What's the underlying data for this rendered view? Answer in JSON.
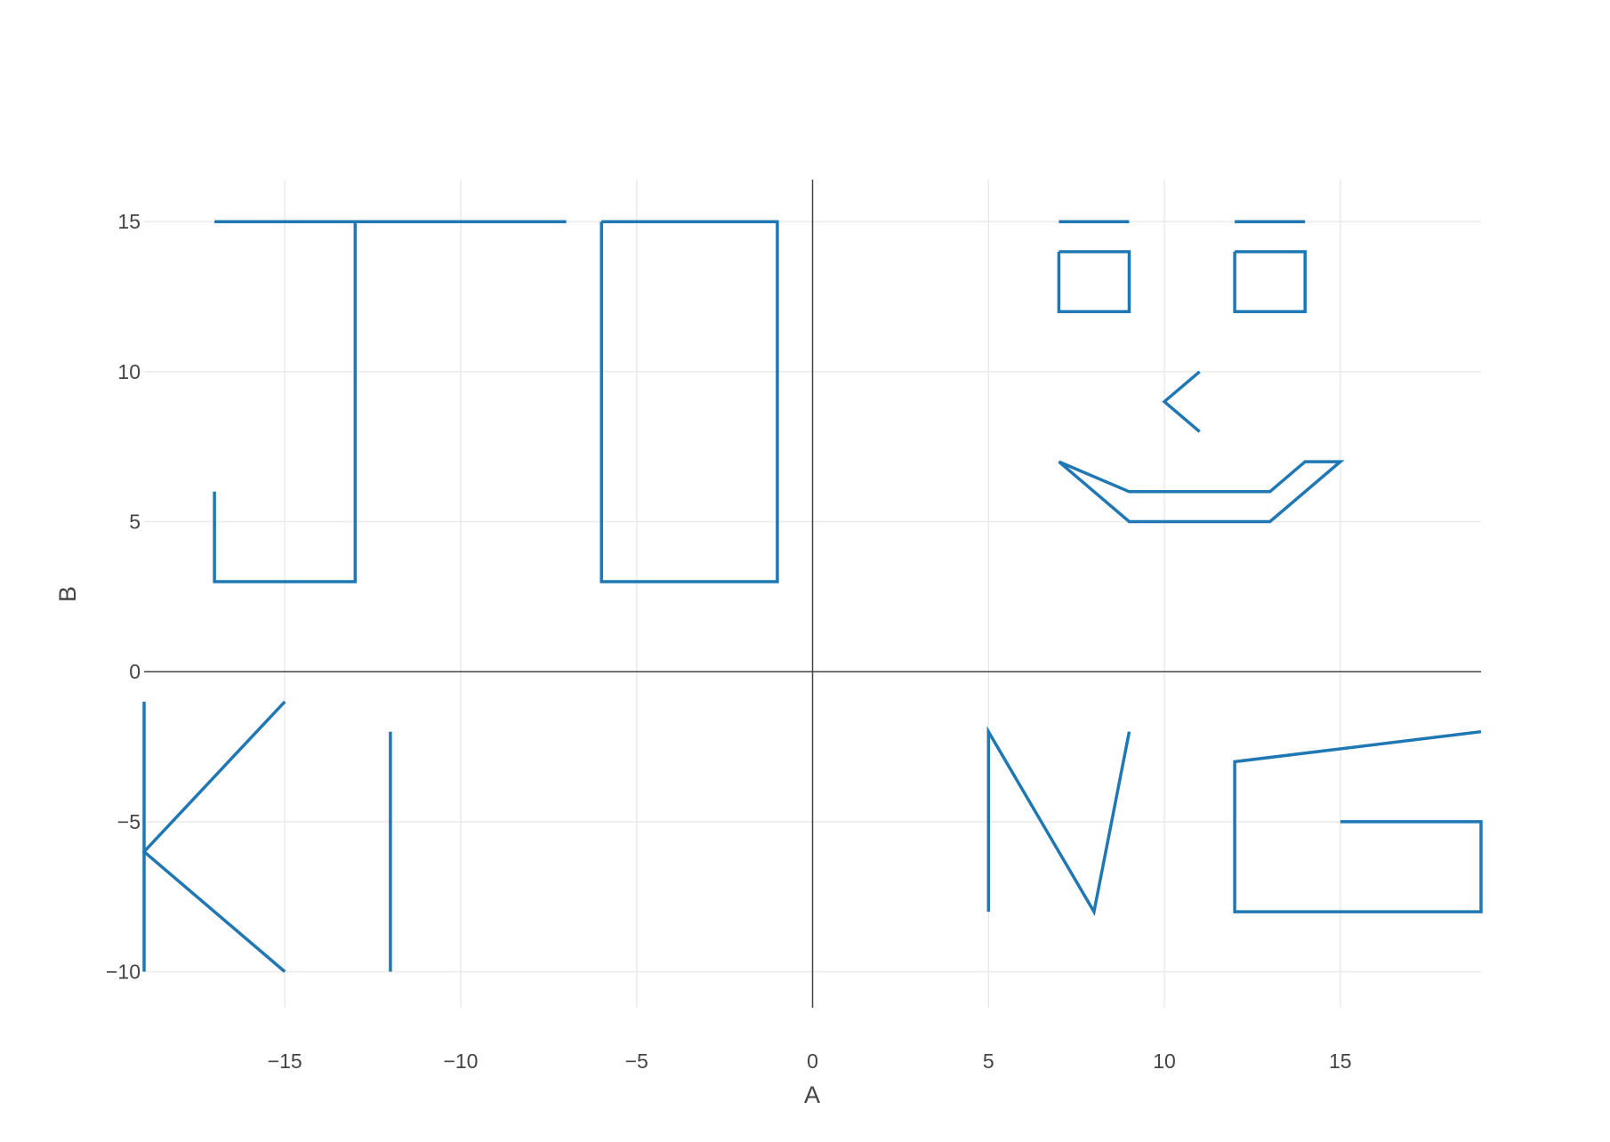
{
  "chart_data": {
    "type": "line",
    "title": "",
    "xlabel": "A",
    "ylabel": "B",
    "xlim": [
      -19,
      19
    ],
    "ylim": [
      -11.2,
      16.4
    ],
    "x_ticks": [
      -15,
      -10,
      -5,
      0,
      5,
      10,
      15
    ],
    "y_ticks": [
      -10,
      -5,
      0,
      5,
      10,
      15
    ],
    "x_tick_labels": [
      "−15",
      "−10",
      "−5",
      "0",
      "5",
      "10",
      "15"
    ],
    "y_tick_labels": [
      "−10",
      "−5",
      "0",
      "5",
      "10",
      "15"
    ],
    "grid": true,
    "zero_lines": true,
    "line_color": "#1f77b4",
    "series": [
      {
        "x": [
          -17,
          -17,
          -13,
          -13
        ],
        "y": [
          6,
          3,
          3,
          15
        ]
      },
      {
        "x": [
          -17,
          -7
        ],
        "y": [
          15,
          15
        ]
      },
      {
        "x": [
          -6,
          -1,
          -1,
          -6,
          -6
        ],
        "y": [
          15,
          15,
          3,
          3,
          15
        ]
      },
      {
        "x": [
          7,
          9
        ],
        "y": [
          15,
          15
        ]
      },
      {
        "x": [
          12,
          14
        ],
        "y": [
          15,
          15
        ]
      },
      {
        "x": [
          7,
          9,
          9,
          7,
          7
        ],
        "y": [
          14,
          14,
          12,
          12,
          14
        ]
      },
      {
        "x": [
          12,
          14,
          14,
          12,
          12
        ],
        "y": [
          14,
          14,
          12,
          12,
          14
        ]
      },
      {
        "x": [
          11,
          10,
          11
        ],
        "y": [
          10,
          9,
          8
        ]
      },
      {
        "x": [
          7,
          9,
          13,
          14,
          15,
          13,
          9,
          7
        ],
        "y": [
          7,
          6,
          6,
          7,
          7,
          5,
          5,
          7
        ]
      },
      {
        "x": [
          -19,
          -19
        ],
        "y": [
          -1,
          -10
        ]
      },
      {
        "x": [
          -15,
          -19,
          -15
        ],
        "y": [
          -1,
          -6,
          -10
        ]
      },
      {
        "x": [
          -12,
          -12
        ],
        "y": [
          -2,
          -10
        ]
      },
      {
        "x": [
          5,
          5,
          8,
          9
        ],
        "y": [
          -8,
          -2,
          -8,
          -2
        ]
      },
      {
        "x": [
          19,
          12,
          12,
          19,
          19,
          15
        ],
        "y": [
          -2,
          -3,
          -8,
          -8,
          -5,
          -5
        ]
      }
    ]
  }
}
